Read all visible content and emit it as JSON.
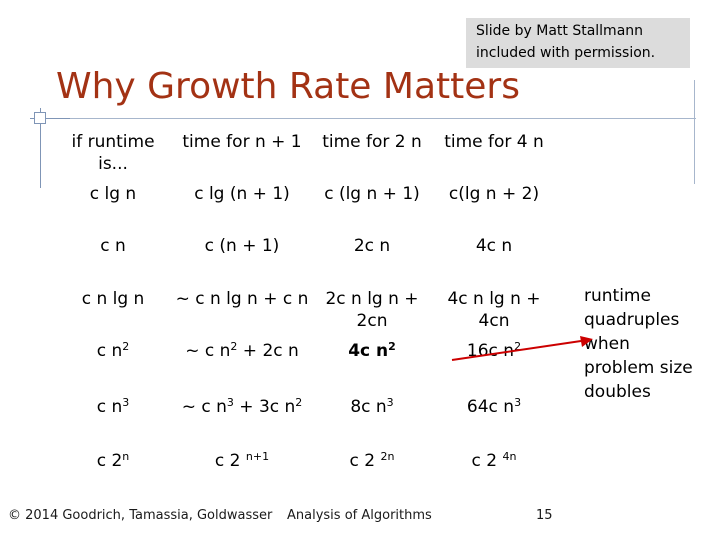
{
  "credit": {
    "line1": "Slide by Matt Stallmann",
    "line2": "included with permission."
  },
  "title": "Why Growth Rate Matters",
  "table": {
    "headers": [
      "if runtime is...",
      "time for n + 1",
      "time for 2 n",
      "time for 4 n"
    ],
    "rows": [
      [
        {
          "t": "c lg n"
        },
        {
          "t": "c lg (n + 1)"
        },
        {
          "t": "c (lg n + 1)"
        },
        {
          "t": "c(lg n + 2)"
        }
      ],
      [
        {
          "t": "c n"
        },
        {
          "t": "c (n + 1)"
        },
        {
          "t": "2c n"
        },
        {
          "t": "4c n"
        }
      ],
      [
        {
          "t": "c n lg n"
        },
        {
          "t": "~ c n lg n + c n"
        },
        {
          "t": "2c n lg n + 2cn"
        },
        {
          "t": "4c n lg n + 4cn"
        }
      ],
      [
        {
          "t": "c n",
          "sup": "2"
        },
        {
          "t": "~ c n",
          "sup": "2",
          "after": " + 2c n"
        },
        {
          "t": "4c n",
          "sup": "2",
          "bold": true
        },
        {
          "t": "16c n",
          "sup": "2"
        }
      ],
      [
        {
          "t": "c n",
          "sup": "3"
        },
        {
          "t": "~ c n",
          "sup": "3",
          "after": " + 3c n",
          "sup2": "2"
        },
        {
          "t": "8c n",
          "sup": "3"
        },
        {
          "t": "64c n",
          "sup": "3"
        }
      ],
      [
        {
          "t": "c 2",
          "sup": "n"
        },
        {
          "t": "c 2 ",
          "sup": "n+1"
        },
        {
          "t": "c 2 ",
          "sup": "2n"
        },
        {
          "t": "c 2 ",
          "sup": "4n"
        }
      ]
    ]
  },
  "note": "runtime quadruples when problem size doubles",
  "footer": {
    "copyright": "© 2014 Goodrich, Tamassia, Goldwasser",
    "subject": "Analysis of Algorithms",
    "page": "15"
  },
  "colors": {
    "title": "#a33214",
    "arrow": "#cc0000",
    "credit_bg": "#dcdcdc"
  }
}
